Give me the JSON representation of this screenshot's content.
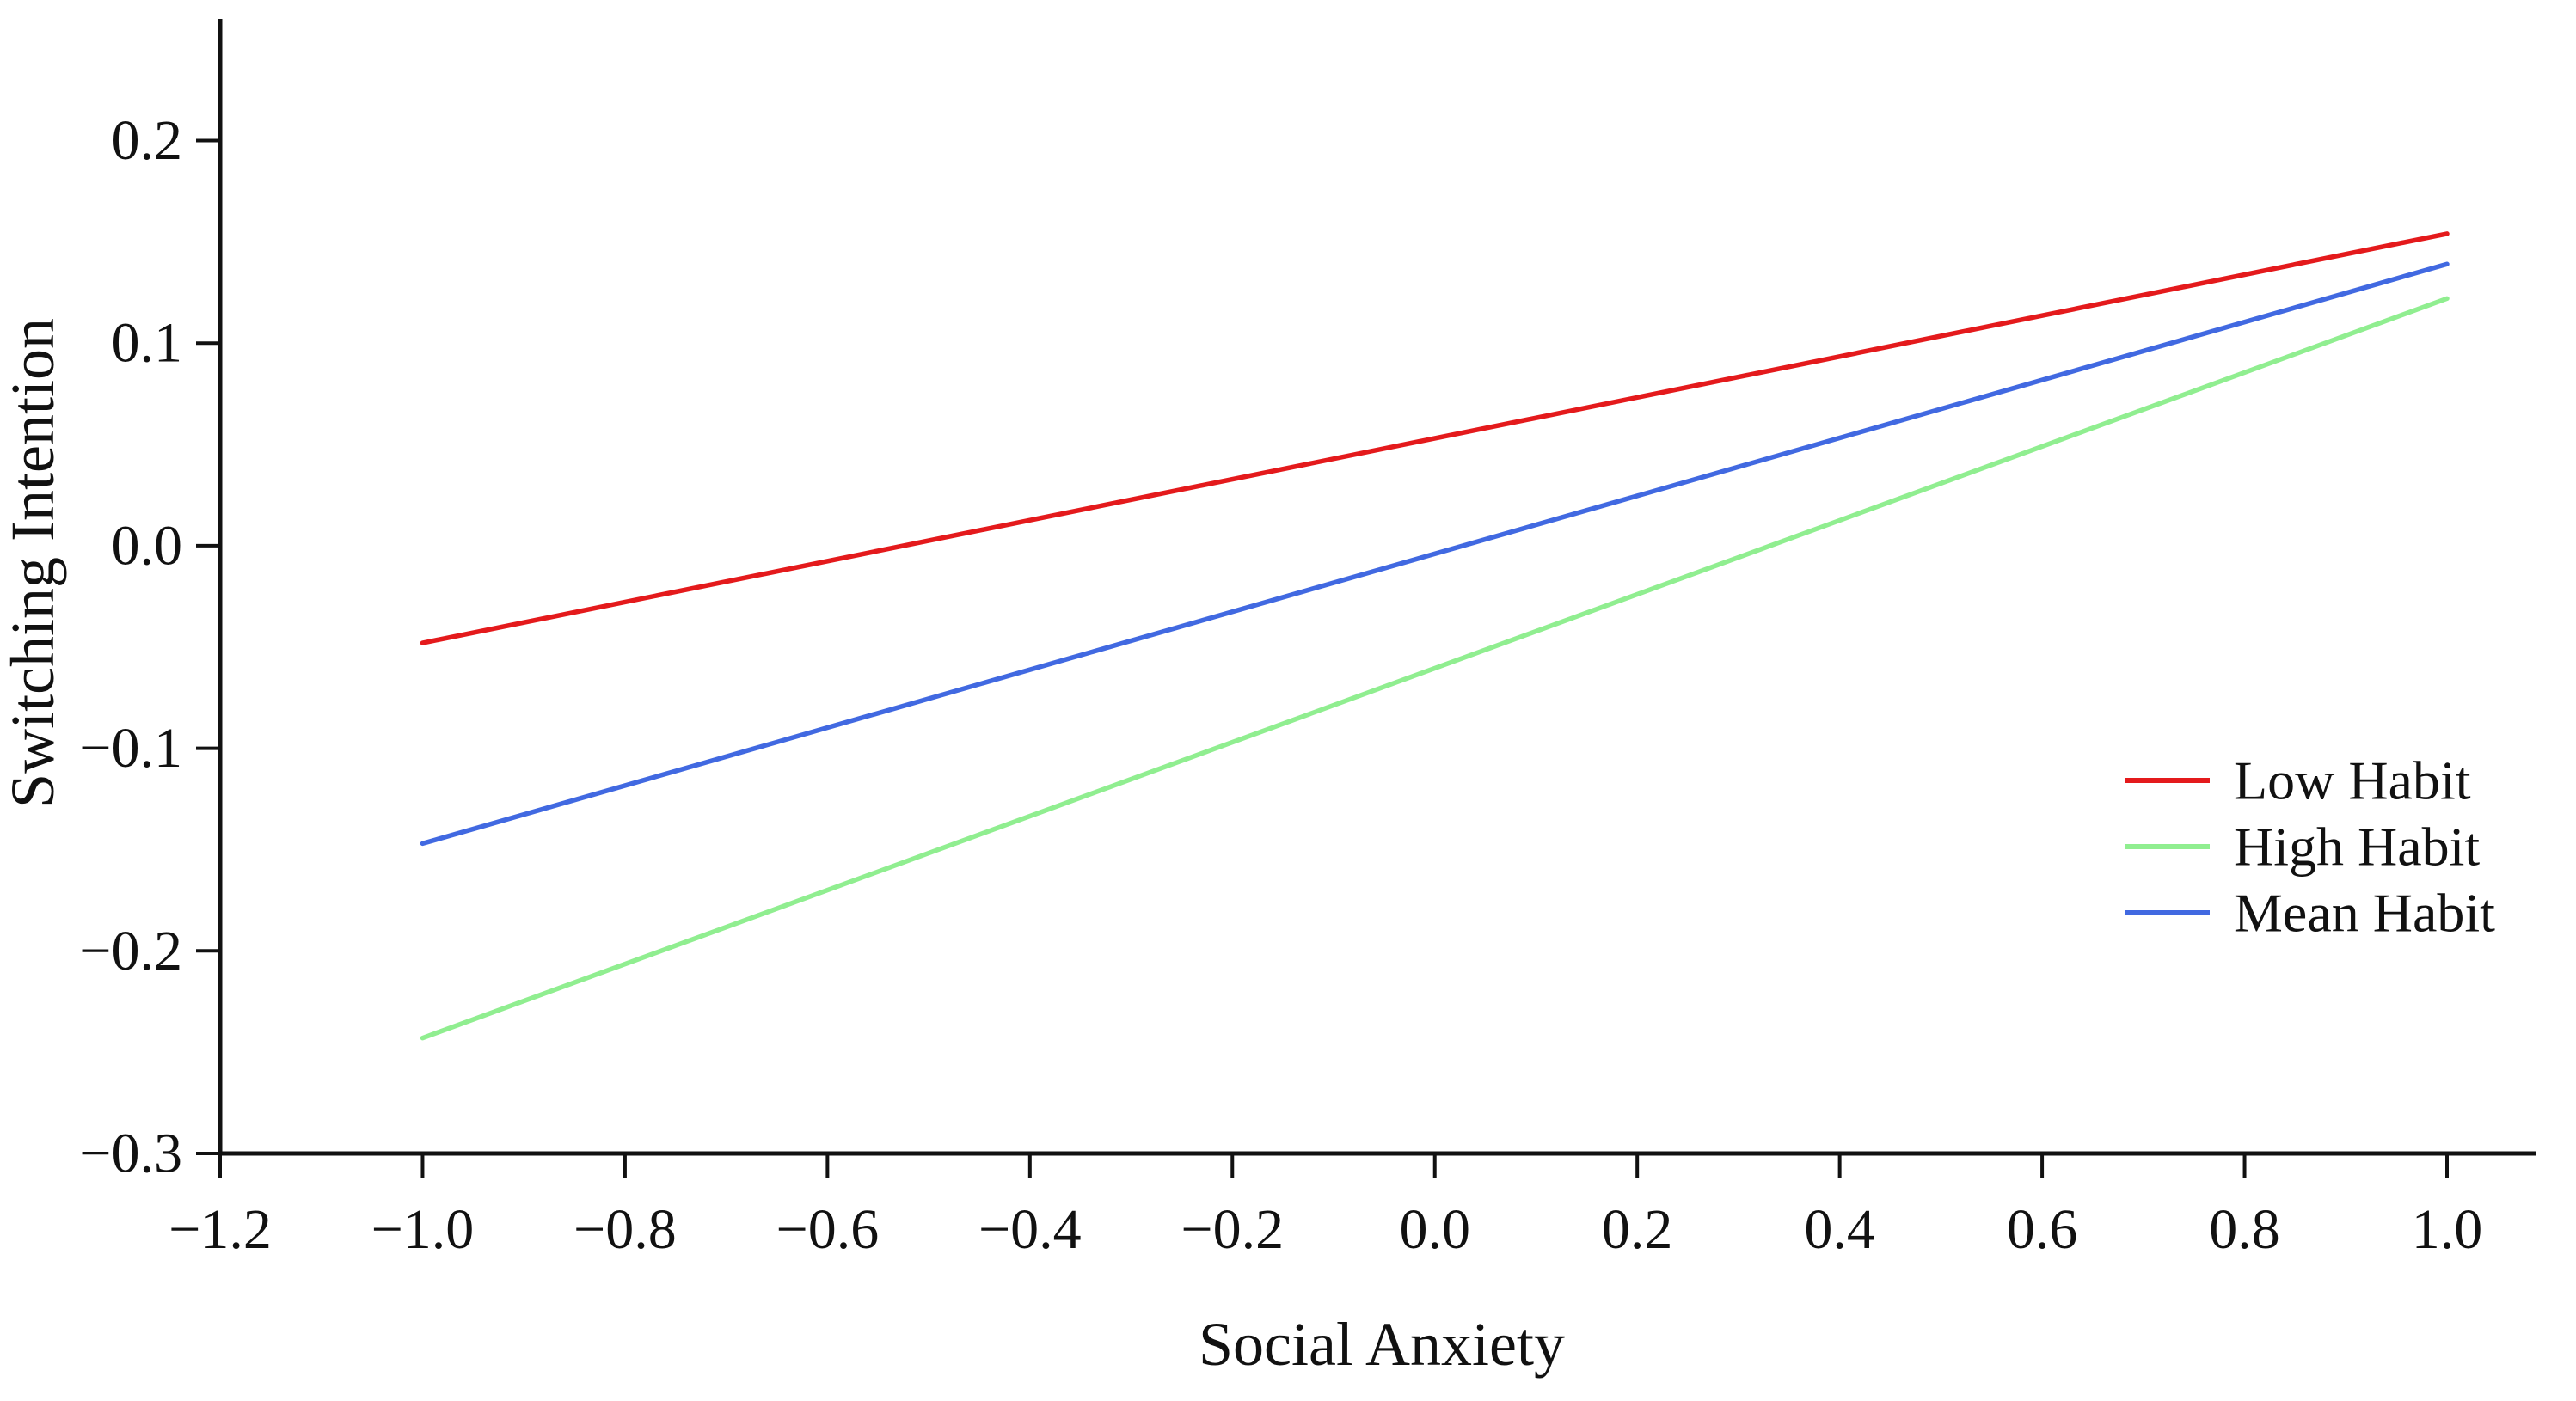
{
  "figure": {
    "background": "#ffffff",
    "axis_color": "#111111",
    "text_color": "#111111"
  },
  "chart_data": {
    "type": "line",
    "title": "",
    "xlabel": "Social Anxiety",
    "ylabel": "Switching Intention",
    "xlim": [
      -1.2,
      1.09
    ],
    "ylim": [
      -0.3,
      0.26
    ],
    "grid": false,
    "x_ticks": [
      -1.2,
      -1.0,
      -0.8,
      -0.6,
      -0.4,
      -0.2,
      0.0,
      0.2,
      0.4,
      0.6,
      0.8,
      1.0
    ],
    "x_tick_labels": [
      "−1.2",
      "−1.0",
      "−0.8",
      "−0.6",
      "−0.4",
      "−0.2",
      "0.0",
      "0.2",
      "0.4",
      "0.6",
      "0.8",
      "1.0"
    ],
    "y_ticks": [
      0.2,
      0.1,
      0.0,
      -0.1,
      -0.2,
      -0.3
    ],
    "y_tick_labels": [
      "0.2",
      "0.1",
      "0.0",
      "−0.1",
      "−0.2",
      "−0.3"
    ],
    "series": [
      {
        "name": "Low Habit",
        "color": "#e41a1c",
        "x": [
          -1.0,
          1.0
        ],
        "y": [
          -0.048,
          0.154
        ]
      },
      {
        "name": "High Habit",
        "color": "#90ee90",
        "x": [
          -1.0,
          1.0
        ],
        "y": [
          -0.243,
          0.122
        ]
      },
      {
        "name": "Mean Habit",
        "color": "#4169e1",
        "x": [
          -1.0,
          1.0
        ],
        "y": [
          -0.147,
          0.139
        ]
      }
    ],
    "legend": {
      "position": "right-middle",
      "entries": [
        "Low Habit",
        "High Habit",
        "Mean Habit"
      ]
    }
  }
}
